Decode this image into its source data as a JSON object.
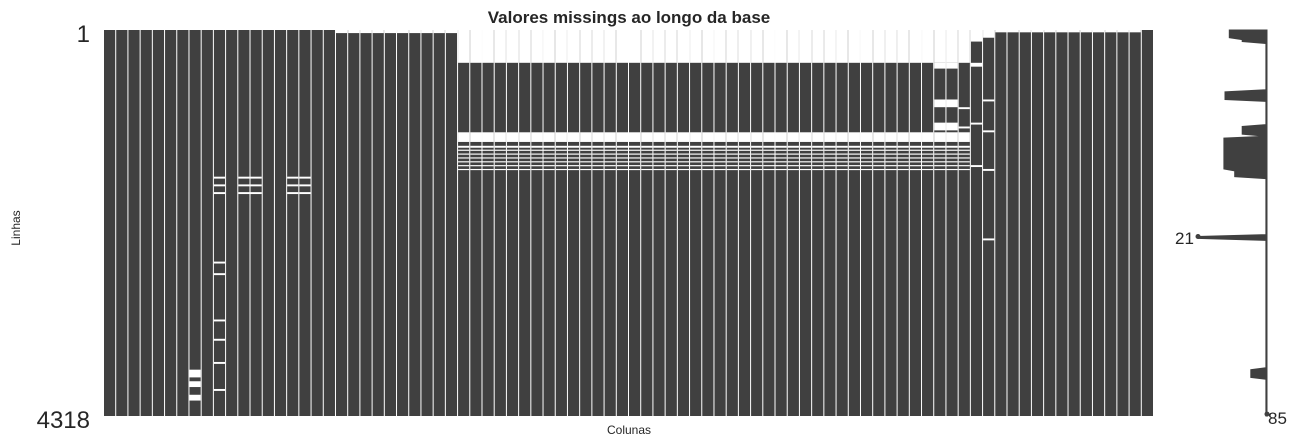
{
  "chart_data": {
    "type": "heatmap",
    "title": "Valores missings ao longo da base",
    "xlabel": "Colunas",
    "ylabel": "Linhas",
    "n_rows": 4318,
    "n_columns": 86,
    "row_labels": [
      "1",
      "4318"
    ],
    "colors": {
      "present": "#404040",
      "missing": "#ffffff",
      "background": "#ffffff"
    },
    "missing_blocks_by_column": [
      {
        "columns": [
          7
        ],
        "row_fraction_ranges": [
          [
            0.88,
            0.9
          ],
          [
            0.91,
            0.925
          ],
          [
            0.945,
            0.96
          ]
        ]
      },
      {
        "columns": [
          9
        ],
        "row_fraction_ranges": [
          [
            0.38,
            0.385
          ],
          [
            0.4,
            0.405
          ],
          [
            0.42,
            0.425
          ],
          [
            0.6,
            0.605
          ],
          [
            0.63,
            0.635
          ],
          [
            0.75,
            0.755
          ],
          [
            0.8,
            0.805
          ],
          [
            0.86,
            0.865
          ],
          [
            0.93,
            0.935
          ]
        ]
      },
      {
        "columns": [
          11,
          12,
          15,
          16
        ],
        "row_fraction_ranges": [
          [
            0.38,
            0.385
          ],
          [
            0.4,
            0.405
          ],
          [
            0.42,
            0.425
          ]
        ]
      },
      {
        "columns": [
          19,
          20,
          21,
          22,
          23,
          24,
          25,
          26,
          27,
          28
        ],
        "row_fraction_ranges": [
          [
            0.0,
            0.008
          ]
        ]
      },
      {
        "columns": [
          29,
          30,
          31,
          32,
          33,
          34,
          35,
          36,
          37,
          38,
          39,
          40,
          41,
          42,
          43,
          44,
          45,
          46,
          47,
          48,
          49,
          50,
          51,
          52,
          53,
          54,
          55,
          56,
          57,
          58,
          59,
          60,
          61,
          62,
          63,
          64,
          65,
          66,
          67,
          68,
          69,
          70
        ],
        "row_fraction_ranges": [
          [
            0.0,
            0.085
          ],
          [
            0.265,
            0.29
          ],
          [
            0.3,
            0.305
          ],
          [
            0.31,
            0.313
          ],
          [
            0.32,
            0.323
          ],
          [
            0.33,
            0.333
          ],
          [
            0.34,
            0.343
          ],
          [
            0.35,
            0.353
          ],
          [
            0.36,
            0.363
          ]
        ]
      },
      {
        "columns": [
          68,
          69
        ],
        "row_fraction_ranges": [
          [
            0.085,
            0.1
          ],
          [
            0.18,
            0.2
          ],
          [
            0.24,
            0.26
          ]
        ]
      },
      {
        "columns": [
          70
        ],
        "row_fraction_ranges": [
          [
            0.2,
            0.205
          ],
          [
            0.25,
            0.255
          ]
        ]
      },
      {
        "columns": [
          71
        ],
        "row_fraction_ranges": [
          [
            0.0,
            0.03
          ],
          [
            0.085,
            0.095
          ],
          [
            0.24,
            0.245
          ],
          [
            0.35,
            0.355
          ]
        ]
      },
      {
        "columns": [
          72
        ],
        "row_fraction_ranges": [
          [
            0.0,
            0.02
          ],
          [
            0.18,
            0.185
          ],
          [
            0.26,
            0.265
          ],
          [
            0.36,
            0.365
          ],
          [
            0.54,
            0.545
          ]
        ]
      },
      {
        "columns": [
          73,
          74,
          75,
          76,
          77,
          78,
          79,
          80,
          81,
          82,
          83,
          84
        ],
        "row_fraction_ranges": [
          [
            0.0,
            0.006
          ]
        ]
      },
      {
        "columns": [
          85
        ],
        "row_fraction_ranges": []
      }
    ],
    "sparkline": {
      "min_label": "21",
      "max_label": "85",
      "min_value": 21,
      "max_value": 85,
      "min_row_fraction": 0.535,
      "max_row_fraction": 0.995
    }
  }
}
